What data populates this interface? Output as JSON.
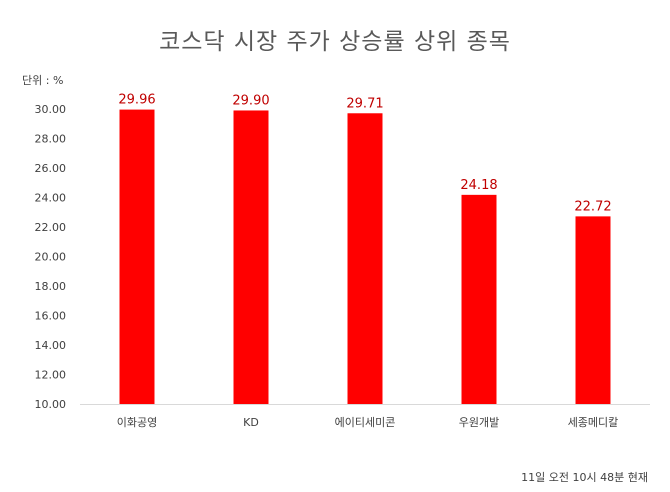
{
  "chart_data": {
    "type": "bar",
    "title": "코스닥 시장 주가 상승률 상위 종목",
    "unit_label": "단위 : %",
    "footnote": "11일 오전 10시 48분 현재",
    "categories": [
      "이화공영",
      "KD",
      "에이티세미콘",
      "우원개발",
      "세종메디칼"
    ],
    "values": [
      29.96,
      29.9,
      29.71,
      24.18,
      22.72
    ],
    "value_labels": [
      "29.96",
      "29.90",
      "29.71",
      "24.18",
      "22.72"
    ],
    "yticks": [
      "10.00",
      "12.00",
      "14.00",
      "16.00",
      "18.00",
      "20.00",
      "22.00",
      "24.00",
      "26.00",
      "28.00",
      "30.00"
    ],
    "ylim": [
      10,
      30
    ],
    "grid": false,
    "bar_color": "#ff0000",
    "label_color": "#c00000"
  }
}
